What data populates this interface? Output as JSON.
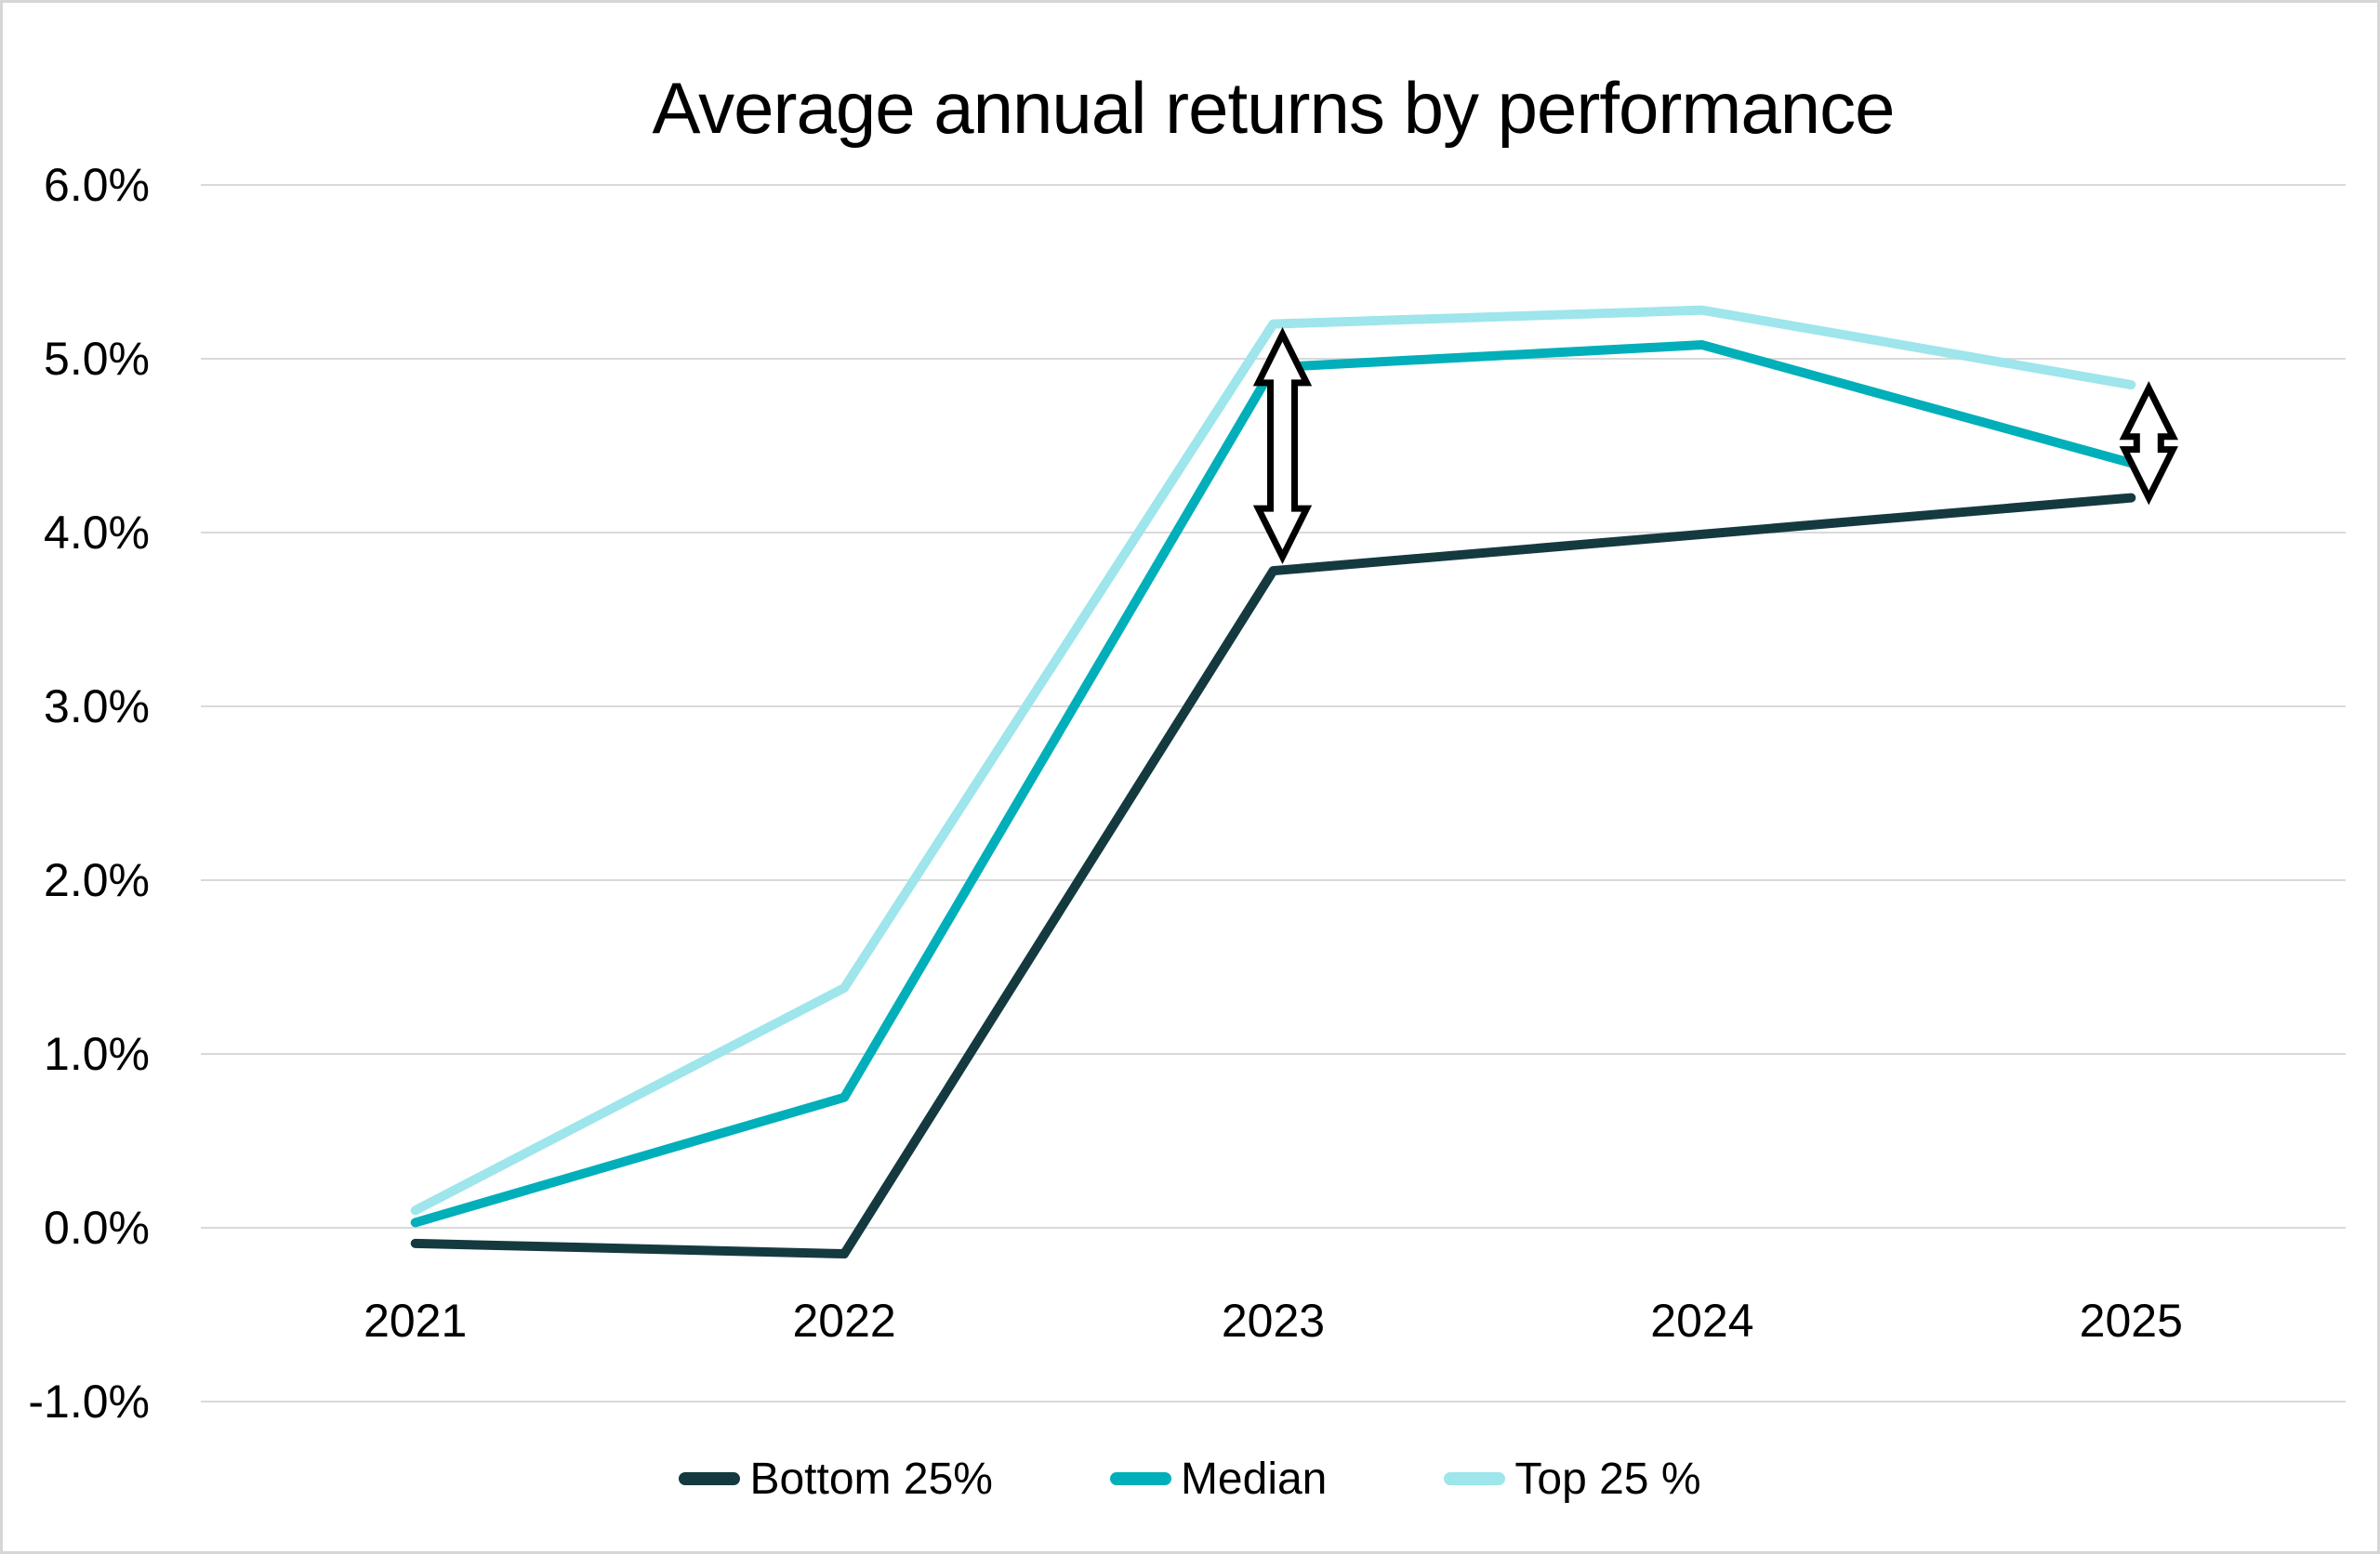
{
  "frame": {
    "background": "#ffffff",
    "border_color": "#d6d6d6"
  },
  "chart_data": {
    "type": "line",
    "title": "Average annual returns by performance",
    "categories": [
      "2021",
      "2022",
      "2023",
      "2024",
      "2025"
    ],
    "series": [
      {
        "name": "Bottom 25%",
        "color": "#143a40",
        "values": [
          -0.09,
          -0.15,
          3.78,
          3.99,
          4.2
        ]
      },
      {
        "name": "Median",
        "color": "#00afb9",
        "values": [
          0.03,
          0.75,
          4.95,
          5.08,
          4.4
        ]
      },
      {
        "name": "Top 25 %",
        "color": "#9ee5ec",
        "values": [
          0.1,
          1.38,
          5.2,
          5.28,
          4.85
        ]
      }
    ],
    "yticks": [
      {
        "label": "6.0%",
        "value": 6
      },
      {
        "label": "5.0%",
        "value": 5
      },
      {
        "label": "4.0%",
        "value": 4
      },
      {
        "label": "3.0%",
        "value": 3
      },
      {
        "label": "2.0%",
        "value": 2
      },
      {
        "label": "1.0%",
        "value": 1
      },
      {
        "label": "0.0%",
        "value": 0
      },
      {
        "label": "-1.0%",
        "value": -1
      }
    ],
    "ylim": [
      -1,
      6
    ],
    "xlabel": "",
    "ylabel": "",
    "grid": true,
    "gridline_color": "#d9d9d9",
    "text_color": "#000000",
    "legend_position": "bottom",
    "line_width": 10,
    "annotations": [
      {
        "type": "double_arrow",
        "category_index": 2,
        "x_offset": 10,
        "value_top": 5.14,
        "value_bottom": 3.86,
        "outline": "#000000",
        "fill": "#ffffff"
      },
      {
        "type": "double_arrow",
        "category_index": 4,
        "x_offset": 19,
        "value_top": 4.83,
        "value_bottom": 4.2,
        "outline": "#000000",
        "fill": "#ffffff"
      }
    ]
  }
}
